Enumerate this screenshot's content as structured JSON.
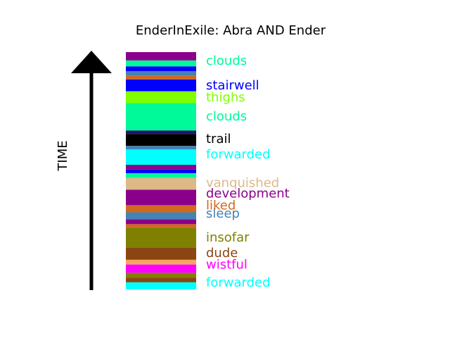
{
  "chart_data": {
    "type": "bar",
    "title": "EnderInExile: Abra AND Ender",
    "ylabel": "TIME",
    "ylim": [
      0,
      100
    ],
    "segments": [
      {
        "start": 0.0,
        "end": 3.0,
        "color": "#00FFFF"
      },
      {
        "start": 3.0,
        "end": 5.0,
        "color": "#8B4513"
      },
      {
        "start": 5.0,
        "end": 7.0,
        "color": "#808000"
      },
      {
        "start": 7.0,
        "end": 10.5,
        "color": "#FF00FF"
      },
      {
        "start": 10.5,
        "end": 12.5,
        "color": "#F4A460"
      },
      {
        "start": 12.5,
        "end": 17.5,
        "color": "#8B4513"
      },
      {
        "start": 17.5,
        "end": 26.0,
        "color": "#808000"
      },
      {
        "start": 26.0,
        "end": 27.5,
        "color": "#D2691E"
      },
      {
        "start": 27.5,
        "end": 29.5,
        "color": "#8B008B"
      },
      {
        "start": 29.5,
        "end": 32.5,
        "color": "#4682B4"
      },
      {
        "start": 32.5,
        "end": 35.5,
        "color": "#D2691E"
      },
      {
        "start": 35.5,
        "end": 42.0,
        "color": "#8B008B"
      },
      {
        "start": 42.0,
        "end": 47.0,
        "color": "#DEB887"
      },
      {
        "start": 47.0,
        "end": 49.0,
        "color": "#00FA9A"
      },
      {
        "start": 49.0,
        "end": 50.5,
        "color": "#0000FF"
      },
      {
        "start": 50.5,
        "end": 52.5,
        "color": "#8B008B"
      },
      {
        "start": 52.5,
        "end": 59.0,
        "color": "#00FFFF"
      },
      {
        "start": 59.0,
        "end": 60.5,
        "color": "#4682B4"
      },
      {
        "start": 60.5,
        "end": 65.5,
        "color": "#000000"
      },
      {
        "start": 65.5,
        "end": 67.0,
        "color": "#191970"
      },
      {
        "start": 67.0,
        "end": 78.5,
        "color": "#00FA9A"
      },
      {
        "start": 78.5,
        "end": 83.5,
        "color": "#7FFF00"
      },
      {
        "start": 83.5,
        "end": 88.5,
        "color": "#0000FF"
      },
      {
        "start": 88.5,
        "end": 90.0,
        "color": "#D2691E"
      },
      {
        "start": 90.0,
        "end": 92.0,
        "color": "#4682B4"
      },
      {
        "start": 92.0,
        "end": 94.0,
        "color": "#0000FF"
      },
      {
        "start": 94.0,
        "end": 96.5,
        "color": "#00FA9A"
      },
      {
        "start": 96.5,
        "end": 100.0,
        "color": "#8B008B"
      }
    ],
    "labels": [
      {
        "text": "forwarded",
        "value": 3.0,
        "color": "#00FFFF"
      },
      {
        "text": "wistful",
        "value": 10.5,
        "color": "#FF00FF"
      },
      {
        "text": "dude",
        "value": 15.5,
        "color": "#8B4513"
      },
      {
        "text": "insofar",
        "value": 22.0,
        "color": "#808000"
      },
      {
        "text": "sleep",
        "value": 32.0,
        "color": "#4682B4"
      },
      {
        "text": "liked",
        "value": 35.5,
        "color": "#D2691E"
      },
      {
        "text": "development",
        "value": 40.5,
        "color": "#8B008B"
      },
      {
        "text": "vanquished",
        "value": 45.0,
        "color": "#DEB887"
      },
      {
        "text": "forwarded",
        "value": 57.0,
        "color": "#00FFFF"
      },
      {
        "text": "trail",
        "value": 63.5,
        "color": "#000000"
      },
      {
        "text": "clouds",
        "value": 73.0,
        "color": "#00FA9A"
      },
      {
        "text": "thighs",
        "value": 81.0,
        "color": "#7FFF00"
      },
      {
        "text": "stairwell",
        "value": 86.0,
        "color": "#0000FF"
      },
      {
        "text": "clouds",
        "value": 96.5,
        "color": "#00FA9A"
      }
    ]
  }
}
